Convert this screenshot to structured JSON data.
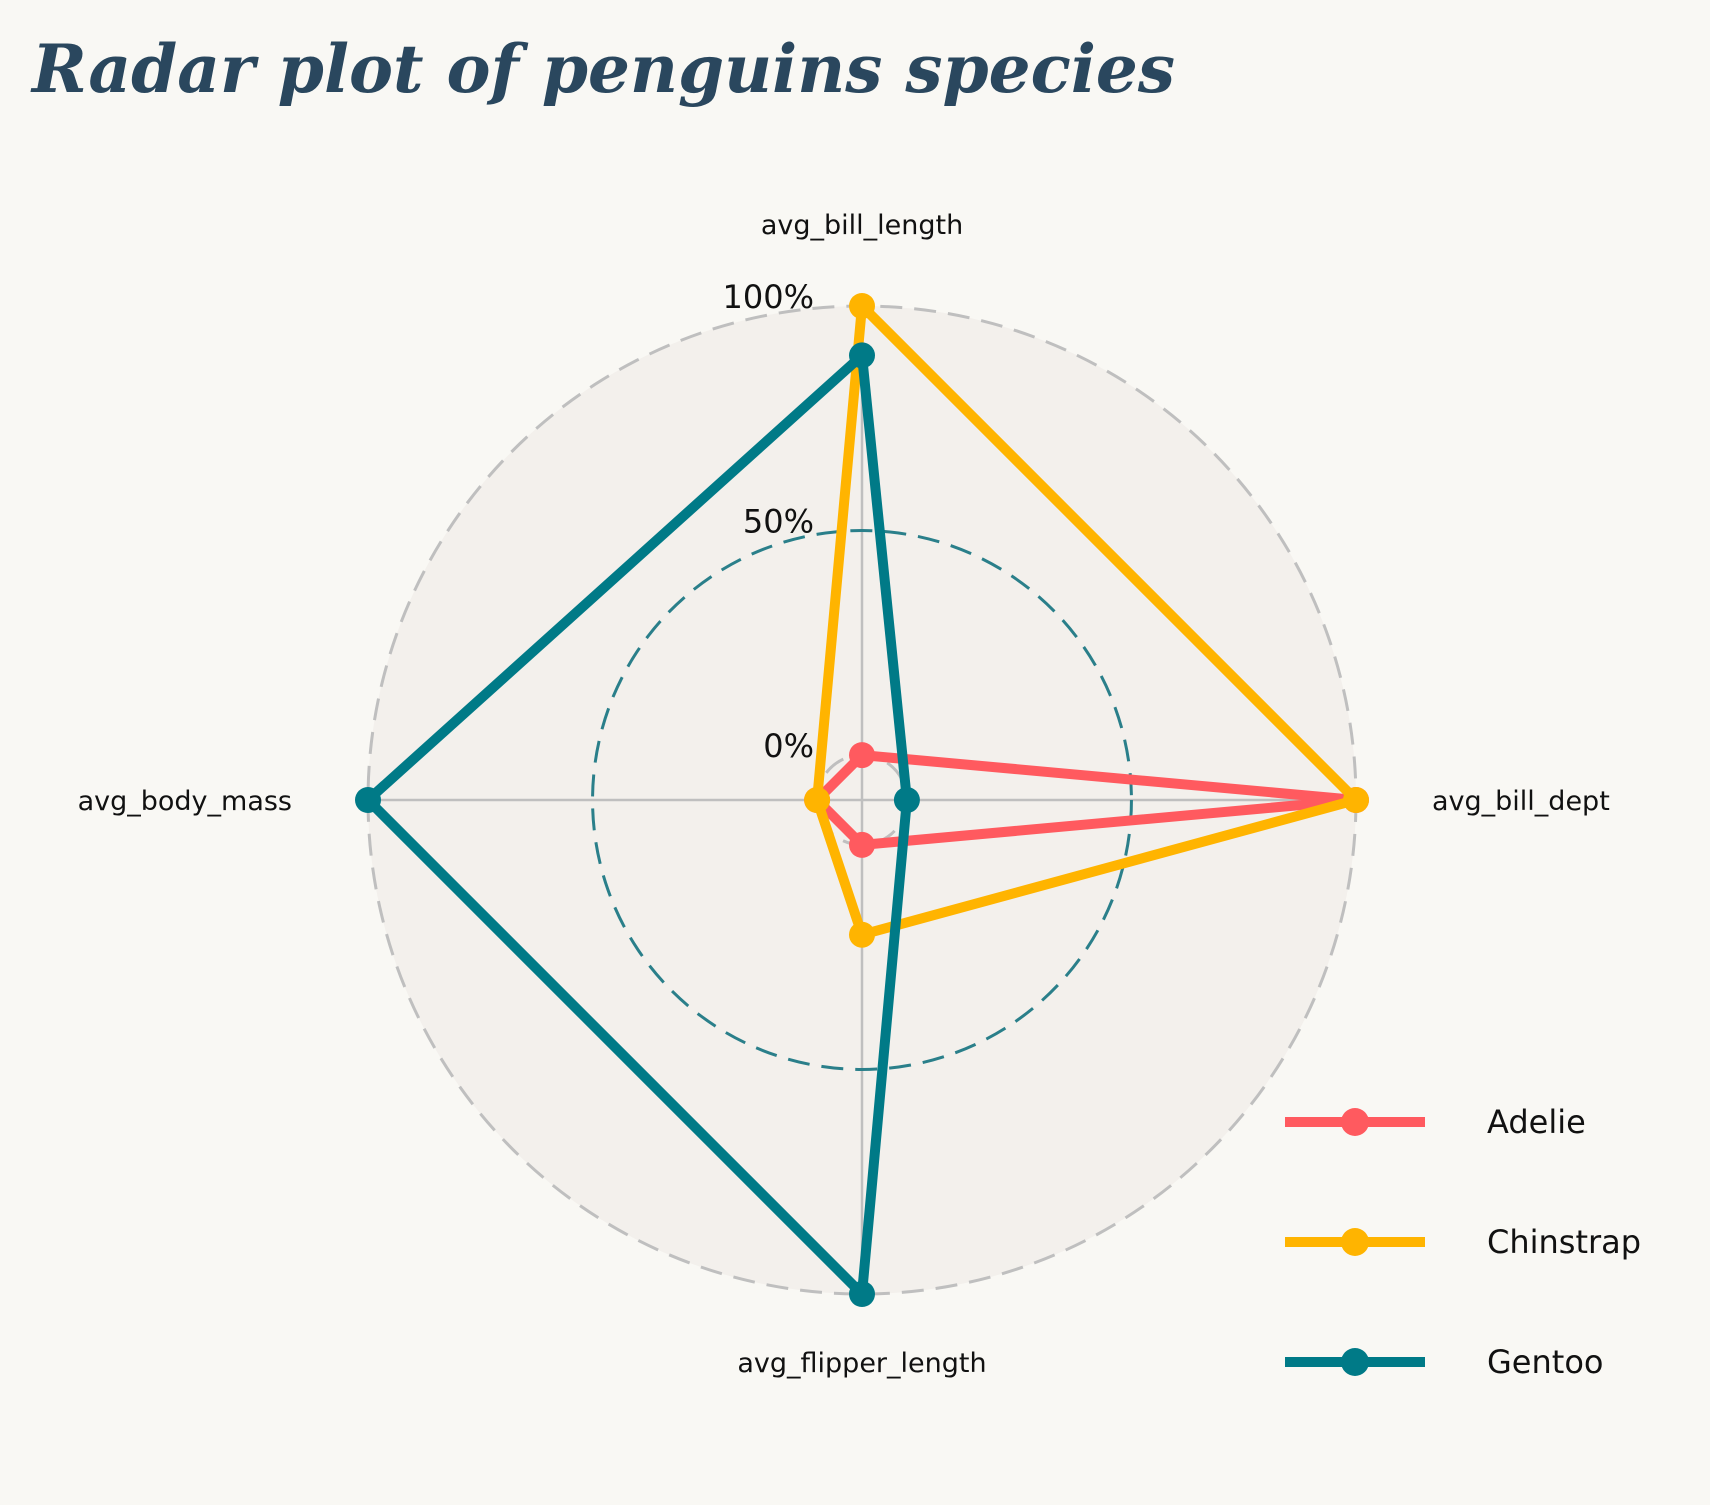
{
  "chart_data": {
    "type": "radar",
    "title": "Radar plot of penguins species",
    "axes": [
      "avg_bill_length",
      "avg_bill_dept",
      "avg_flipper_length",
      "avg_body_mass"
    ],
    "radial_ticks": [
      {
        "value": 0,
        "label": "0%"
      },
      {
        "value": 0.5,
        "label": "50%"
      },
      {
        "value": 1.0,
        "label": "100%"
      }
    ],
    "rlim": [
      -0.1,
      1.0
    ],
    "grid": true,
    "legend": "bottom-right",
    "series": [
      {
        "name": "Adelie",
        "color": "#ff5a5f",
        "values": [
          0.0,
          1.0,
          0.0,
          0.0
        ]
      },
      {
        "name": "Chinstrap",
        "color": "#ffb400",
        "values": [
          1.0,
          1.0,
          0.2,
          0.0
        ]
      },
      {
        "name": "Gentoo",
        "color": "#007a87",
        "values": [
          0.89,
          0.0,
          1.0,
          1.0
        ]
      }
    ],
    "colors": {
      "title": "#2a475e",
      "background": "#f9f8f4",
      "panel": "#f3f0ec",
      "grid": "#bfbfbf",
      "mid_ring": "#2a7f8a"
    }
  }
}
